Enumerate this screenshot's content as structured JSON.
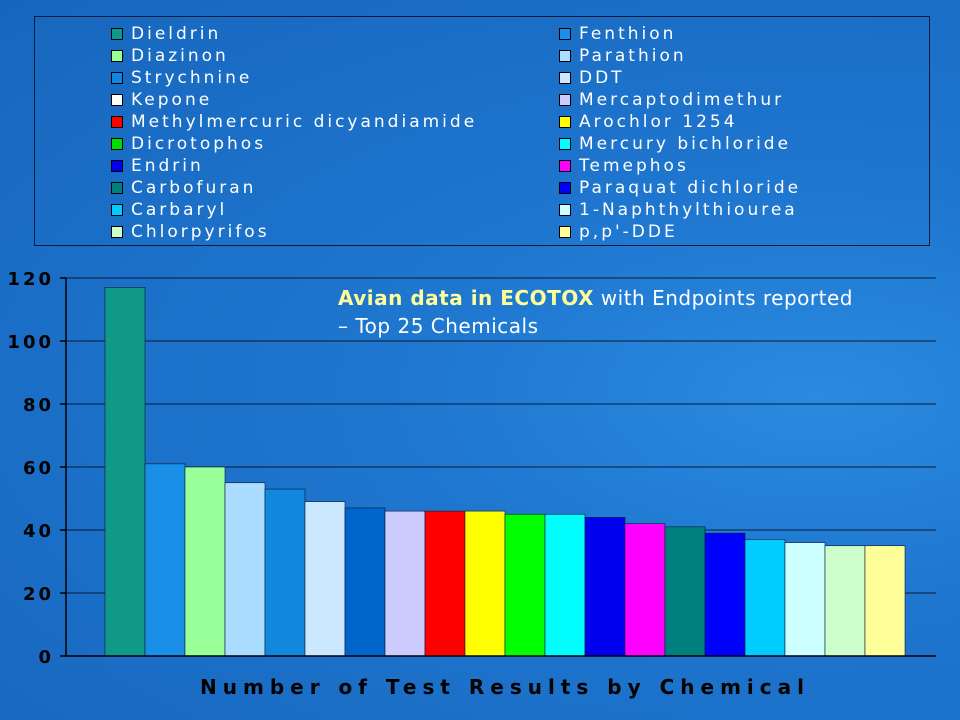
{
  "chart_data": {
    "type": "bar",
    "title_highlight": "Avian data in ECOTOX",
    "title_rest": " with Endpoints reported – Top 25 Chemicals",
    "xlabel": "Number of Test Results by Chemical",
    "ylabel": "",
    "ylim": [
      0,
      120
    ],
    "yticks": [
      0,
      20,
      40,
      60,
      80,
      100,
      120
    ],
    "grid": true,
    "legend": {
      "placement": "top",
      "entries": [
        {
          "name": "Dieldrin",
          "color": "#119988"
        },
        {
          "name": "Diazinon",
          "color": "#99ff99"
        },
        {
          "name": "Strychnine",
          "color": "#1188dd"
        },
        {
          "name": "Kepone",
          "color": "#ffffff"
        },
        {
          "name": "Methylmercuric dicyandiamide",
          "color": "#ff0000"
        },
        {
          "name": "Dicrotophos",
          "color": "#00dd00"
        },
        {
          "name": "Endrin",
          "color": "#0000ee"
        },
        {
          "name": "Carbofuran",
          "color": "#007f7f"
        },
        {
          "name": "Carbaryl",
          "color": "#00ccff"
        },
        {
          "name": "Chlorpyrifos",
          "color": "#ccffcc"
        },
        {
          "name": "Fenthion",
          "color": "#1a8fe8"
        },
        {
          "name": "Parathion",
          "color": "#aaddff"
        },
        {
          "name": "DDT",
          "color": "#cce8ff"
        },
        {
          "name": "Mercaptodimethur",
          "color": "#ccccff"
        },
        {
          "name": "Arochlor 1254",
          "color": "#ffff00"
        },
        {
          "name": "Mercury bichloride",
          "color": "#00ffff"
        },
        {
          "name": "Temephos",
          "color": "#ff00ff"
        },
        {
          "name": "Paraquat dichloride",
          "color": "#0000ff"
        },
        {
          "name": "1-Naphthylthiourea",
          "color": "#ccffff"
        },
        {
          "name": "p,p'-DDE",
          "color": "#ffff99"
        }
      ]
    },
    "bars": [
      {
        "value": 117,
        "color": "#119988"
      },
      {
        "value": 61,
        "color": "#1a8fe8"
      },
      {
        "value": 60,
        "color": "#99ff99"
      },
      {
        "value": 55,
        "color": "#aaddff"
      },
      {
        "value": 53,
        "color": "#1188dd"
      },
      {
        "value": 49,
        "color": "#cce8ff"
      },
      {
        "value": 47,
        "color": "#0066cc"
      },
      {
        "value": 46,
        "color": "#ccccff"
      },
      {
        "value": 46,
        "color": "#ff0000"
      },
      {
        "value": 46,
        "color": "#ffff00"
      },
      {
        "value": 45,
        "color": "#00ff00"
      },
      {
        "value": 45,
        "color": "#00ffff"
      },
      {
        "value": 44,
        "color": "#0000ee"
      },
      {
        "value": 42,
        "color": "#ff00ff"
      },
      {
        "value": 41,
        "color": "#007f7f"
      },
      {
        "value": 39,
        "color": "#0000ff"
      },
      {
        "value": 37,
        "color": "#00ccff"
      },
      {
        "value": 36,
        "color": "#ccffff"
      },
      {
        "value": 35,
        "color": "#ccffcc"
      },
      {
        "value": 35,
        "color": "#ffff99"
      }
    ]
  }
}
